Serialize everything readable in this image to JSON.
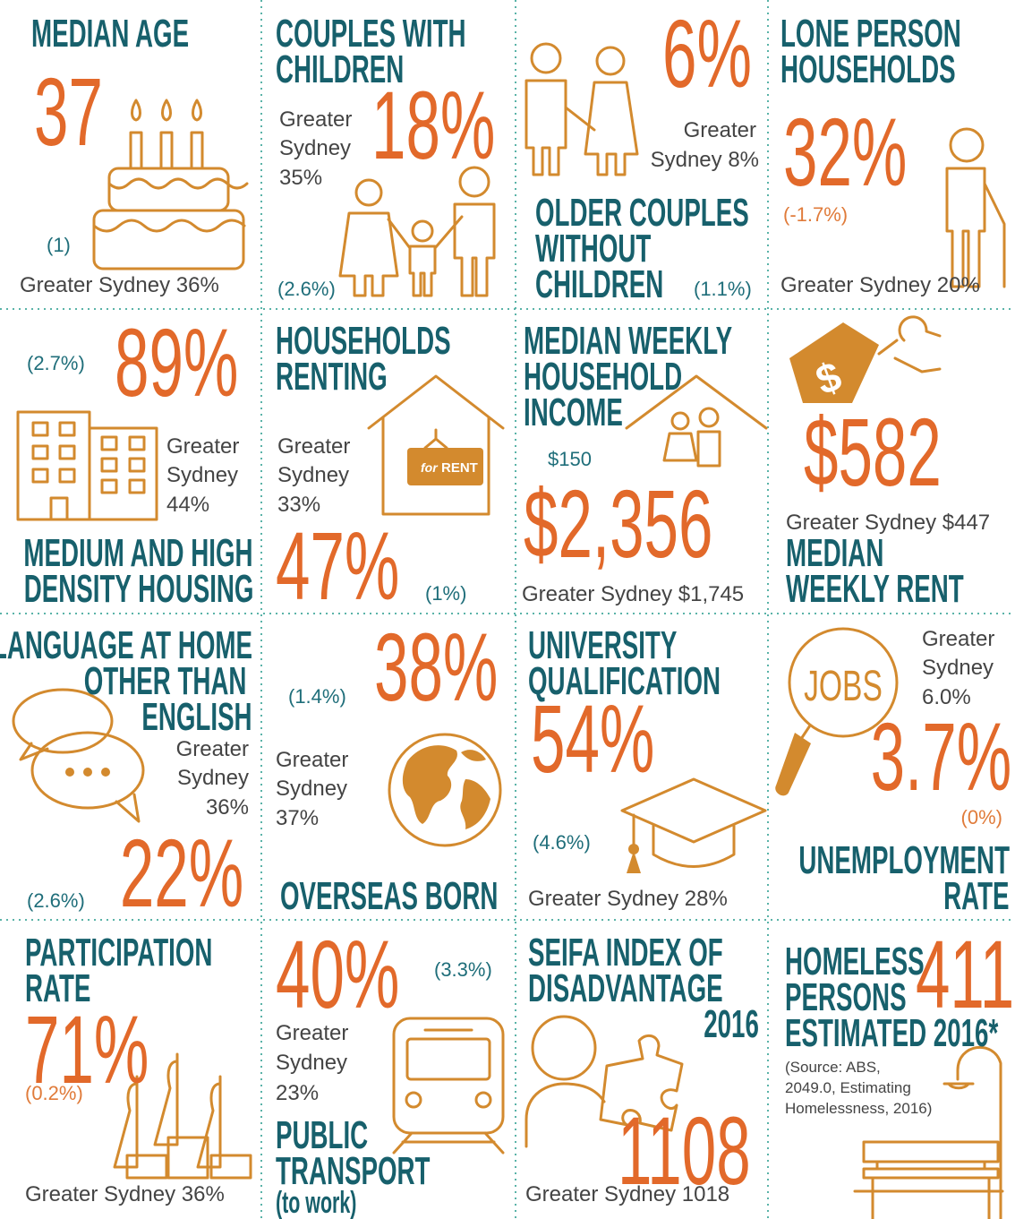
{
  "cells": [
    {
      "title": [
        "MEDIAN AGE"
      ],
      "value": "37",
      "change": "(1)",
      "comparison": [
        "Greater Sydney 36%"
      ]
    },
    {
      "title": [
        "COUPLES WITH",
        "CHILDREN"
      ],
      "value": "18%",
      "comparison": [
        "Greater",
        "Sydney",
        "35%"
      ],
      "change": "(2.6%)"
    },
    {
      "value": "6%",
      "comparison": [
        "Greater",
        "Sydney 8%"
      ],
      "title": [
        "OLDER COUPLES",
        "WITHOUT",
        "CHILDREN"
      ],
      "change": "(1.1%)"
    },
    {
      "title": [
        "LONE PERSON",
        "HOUSEHOLDS"
      ],
      "value": "32%",
      "change": "(-1.7%)",
      "comparison": [
        "Greater Sydney 20%"
      ]
    },
    {
      "change": "(2.7%)",
      "value": "89%",
      "comparison": [
        "Greater",
        "Sydney",
        "44%"
      ],
      "title": [
        "MEDIUM AND HIGH",
        "DENSITY HOUSING"
      ]
    },
    {
      "title": [
        "HOUSEHOLDS",
        "RENTING"
      ],
      "comparison": [
        "Greater",
        "Sydney",
        "33%"
      ],
      "value": "47%",
      "change": "(1%)",
      "sign": [
        "for",
        "RENT"
      ]
    },
    {
      "title": [
        "MEDIAN WEEKLY",
        "HOUSEHOLD",
        "INCOME"
      ],
      "change": "$150",
      "value": "$2,356",
      "comparison": [
        "Greater Sydney $1,745"
      ]
    },
    {
      "tag": "$",
      "value": "$582",
      "comparison": [
        "Greater Sydney $447"
      ],
      "title": [
        "MEDIAN",
        "WEEKLY RENT"
      ]
    },
    {
      "title": [
        "LANGUAGE AT HOME",
        "OTHER THAN",
        "ENGLISH"
      ],
      "comparison": [
        "Greater",
        "Sydney",
        "36%"
      ],
      "value": "22%",
      "change": "(2.6%)"
    },
    {
      "value": "38%",
      "change": "(1.4%)",
      "comparison": [
        "Greater",
        "Sydney",
        "37%"
      ],
      "title": [
        "OVERSEAS BORN"
      ]
    },
    {
      "title": [
        "UNIVERSITY",
        "QUALIFICATION"
      ],
      "value": "54%",
      "change": "(4.6%)",
      "comparison": [
        "Greater Sydney 28%"
      ]
    },
    {
      "icon_label": "JOBS",
      "comparison": [
        "Greater",
        "Sydney",
        "6.0%"
      ],
      "value": "3.7%",
      "change": "(0%)",
      "title": [
        "UNEMPLOYMENT",
        "RATE"
      ]
    },
    {
      "title": [
        "PARTICIPATION",
        "RATE"
      ],
      "value": "71%",
      "change": "(0.2%)",
      "comparison": [
        "Greater Sydney 36%"
      ]
    },
    {
      "value": "40%",
      "change": "(3.3%)",
      "comparison": [
        "Greater",
        "Sydney",
        "23%"
      ],
      "title": [
        "PUBLIC",
        "TRANSPORT"
      ],
      "note": "(to work)"
    },
    {
      "title": [
        "SEIFA INDEX OF",
        "DISADVANTAGE",
        "2016"
      ],
      "value": "1108",
      "comparison": [
        "Greater Sydney 1018"
      ]
    },
    {
      "title": [
        "HOMELESS",
        "PERSONS",
        "ESTIMATED 2016*"
      ],
      "value": "411",
      "source": [
        "(Source: ABS,",
        "2049.0, Estimating",
        "Homelessness, 2016)"
      ]
    }
  ]
}
